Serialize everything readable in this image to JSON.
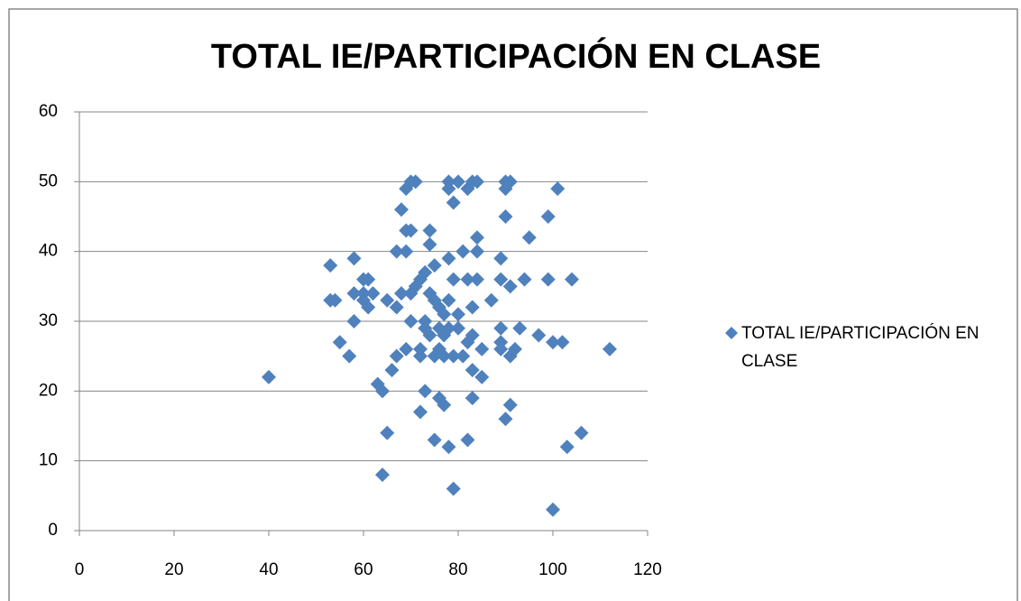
{
  "chart_data": {
    "type": "scatter",
    "title": "TOTAL IE/PARTICIPACIÓN EN CLASE",
    "series": [
      {
        "name": "TOTAL IE/PARTICIPACIÓN EN CLASE",
        "color": "#4f81bd",
        "x": [
          40,
          53,
          53,
          54,
          55,
          57,
          58,
          58,
          58,
          60,
          60,
          61,
          61,
          62,
          60,
          63,
          64,
          64,
          65,
          65,
          66,
          67,
          67,
          67,
          68,
          68,
          69,
          69,
          69,
          69,
          70,
          70,
          70,
          70,
          71,
          71,
          72,
          72,
          72,
          72,
          73,
          73,
          73,
          73,
          74,
          74,
          74,
          74,
          75,
          75,
          75,
          75,
          76,
          76,
          76,
          76,
          77,
          77,
          77,
          77,
          78,
          78,
          78,
          78,
          78,
          78,
          79,
          79,
          79,
          79,
          80,
          80,
          80,
          81,
          81,
          82,
          82,
          82,
          82,
          83,
          83,
          83,
          83,
          83,
          84,
          84,
          84,
          84,
          85,
          85,
          87,
          89,
          89,
          89,
          89,
          89,
          90,
          90,
          90,
          90,
          91,
          91,
          91,
          91,
          92,
          93,
          94,
          95,
          97,
          99,
          99,
          100,
          100,
          101,
          102,
          103,
          104,
          106,
          112
        ],
        "values": [
          22,
          38,
          33,
          33,
          27,
          25,
          39,
          30,
          34,
          36,
          34,
          36,
          32,
          34,
          33,
          21,
          20,
          8,
          14,
          33,
          23,
          32,
          25,
          40,
          46,
          34,
          49,
          40,
          26,
          43,
          50,
          43,
          34,
          30,
          50,
          35,
          17,
          25,
          26,
          36,
          37,
          20,
          30,
          29,
          43,
          41,
          34,
          28,
          13,
          25,
          38,
          33,
          19,
          29,
          26,
          32,
          18,
          31,
          28,
          25,
          50,
          49,
          39,
          33,
          29,
          12,
          47,
          36,
          6,
          25,
          50,
          31,
          29,
          40,
          25,
          49,
          36,
          13,
          27,
          50,
          32,
          19,
          23,
          28,
          50,
          42,
          40,
          36,
          26,
          22,
          33,
          39,
          36,
          29,
          27,
          26,
          50,
          49,
          45,
          16,
          50,
          35,
          25,
          18,
          26,
          29,
          36,
          42,
          28,
          45,
          36,
          27,
          3,
          49,
          27,
          12,
          36,
          14,
          26
        ]
      }
    ],
    "xlim": [
      0,
      120
    ],
    "xticks": [
      0,
      20,
      40,
      60,
      80,
      100,
      120
    ],
    "ylim": [
      0,
      60
    ],
    "yticks": [
      0,
      10,
      20,
      30,
      40,
      50,
      60
    ],
    "grid": true,
    "legend": "right"
  }
}
